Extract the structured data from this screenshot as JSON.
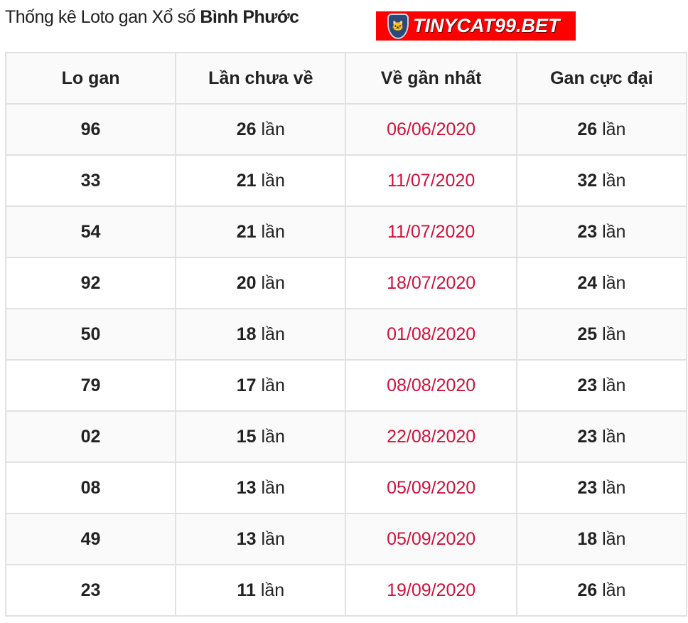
{
  "title": {
    "prefix": "Thống kê Loto gan Xổ số ",
    "province": "Bình Phước"
  },
  "logo": {
    "text": "TINYCAT99.BET",
    "bg": "#ff0000"
  },
  "unit": "lần",
  "table": {
    "headers": [
      "Lo gan",
      "Lần chưa về",
      "Về gần nhất",
      "Gan cực đại"
    ],
    "rows": [
      {
        "lo": "96",
        "chua_ve": "26",
        "gan_nhat": "06/06/2020",
        "cuc_dai": "26"
      },
      {
        "lo": "33",
        "chua_ve": "21",
        "gan_nhat": "11/07/2020",
        "cuc_dai": "32"
      },
      {
        "lo": "54",
        "chua_ve": "21",
        "gan_nhat": "11/07/2020",
        "cuc_dai": "23"
      },
      {
        "lo": "92",
        "chua_ve": "20",
        "gan_nhat": "18/07/2020",
        "cuc_dai": "24"
      },
      {
        "lo": "50",
        "chua_ve": "18",
        "gan_nhat": "01/08/2020",
        "cuc_dai": "25"
      },
      {
        "lo": "79",
        "chua_ve": "17",
        "gan_nhat": "08/08/2020",
        "cuc_dai": "23"
      },
      {
        "lo": "02",
        "chua_ve": "15",
        "gan_nhat": "22/08/2020",
        "cuc_dai": "23"
      },
      {
        "lo": "08",
        "chua_ve": "13",
        "gan_nhat": "05/09/2020",
        "cuc_dai": "23"
      },
      {
        "lo": "49",
        "chua_ve": "13",
        "gan_nhat": "05/09/2020",
        "cuc_dai": "18"
      },
      {
        "lo": "23",
        "chua_ve": "11",
        "gan_nhat": "19/09/2020",
        "cuc_dai": "26"
      }
    ]
  },
  "colors": {
    "date": "#d0103a",
    "border": "#e1e1e1"
  }
}
